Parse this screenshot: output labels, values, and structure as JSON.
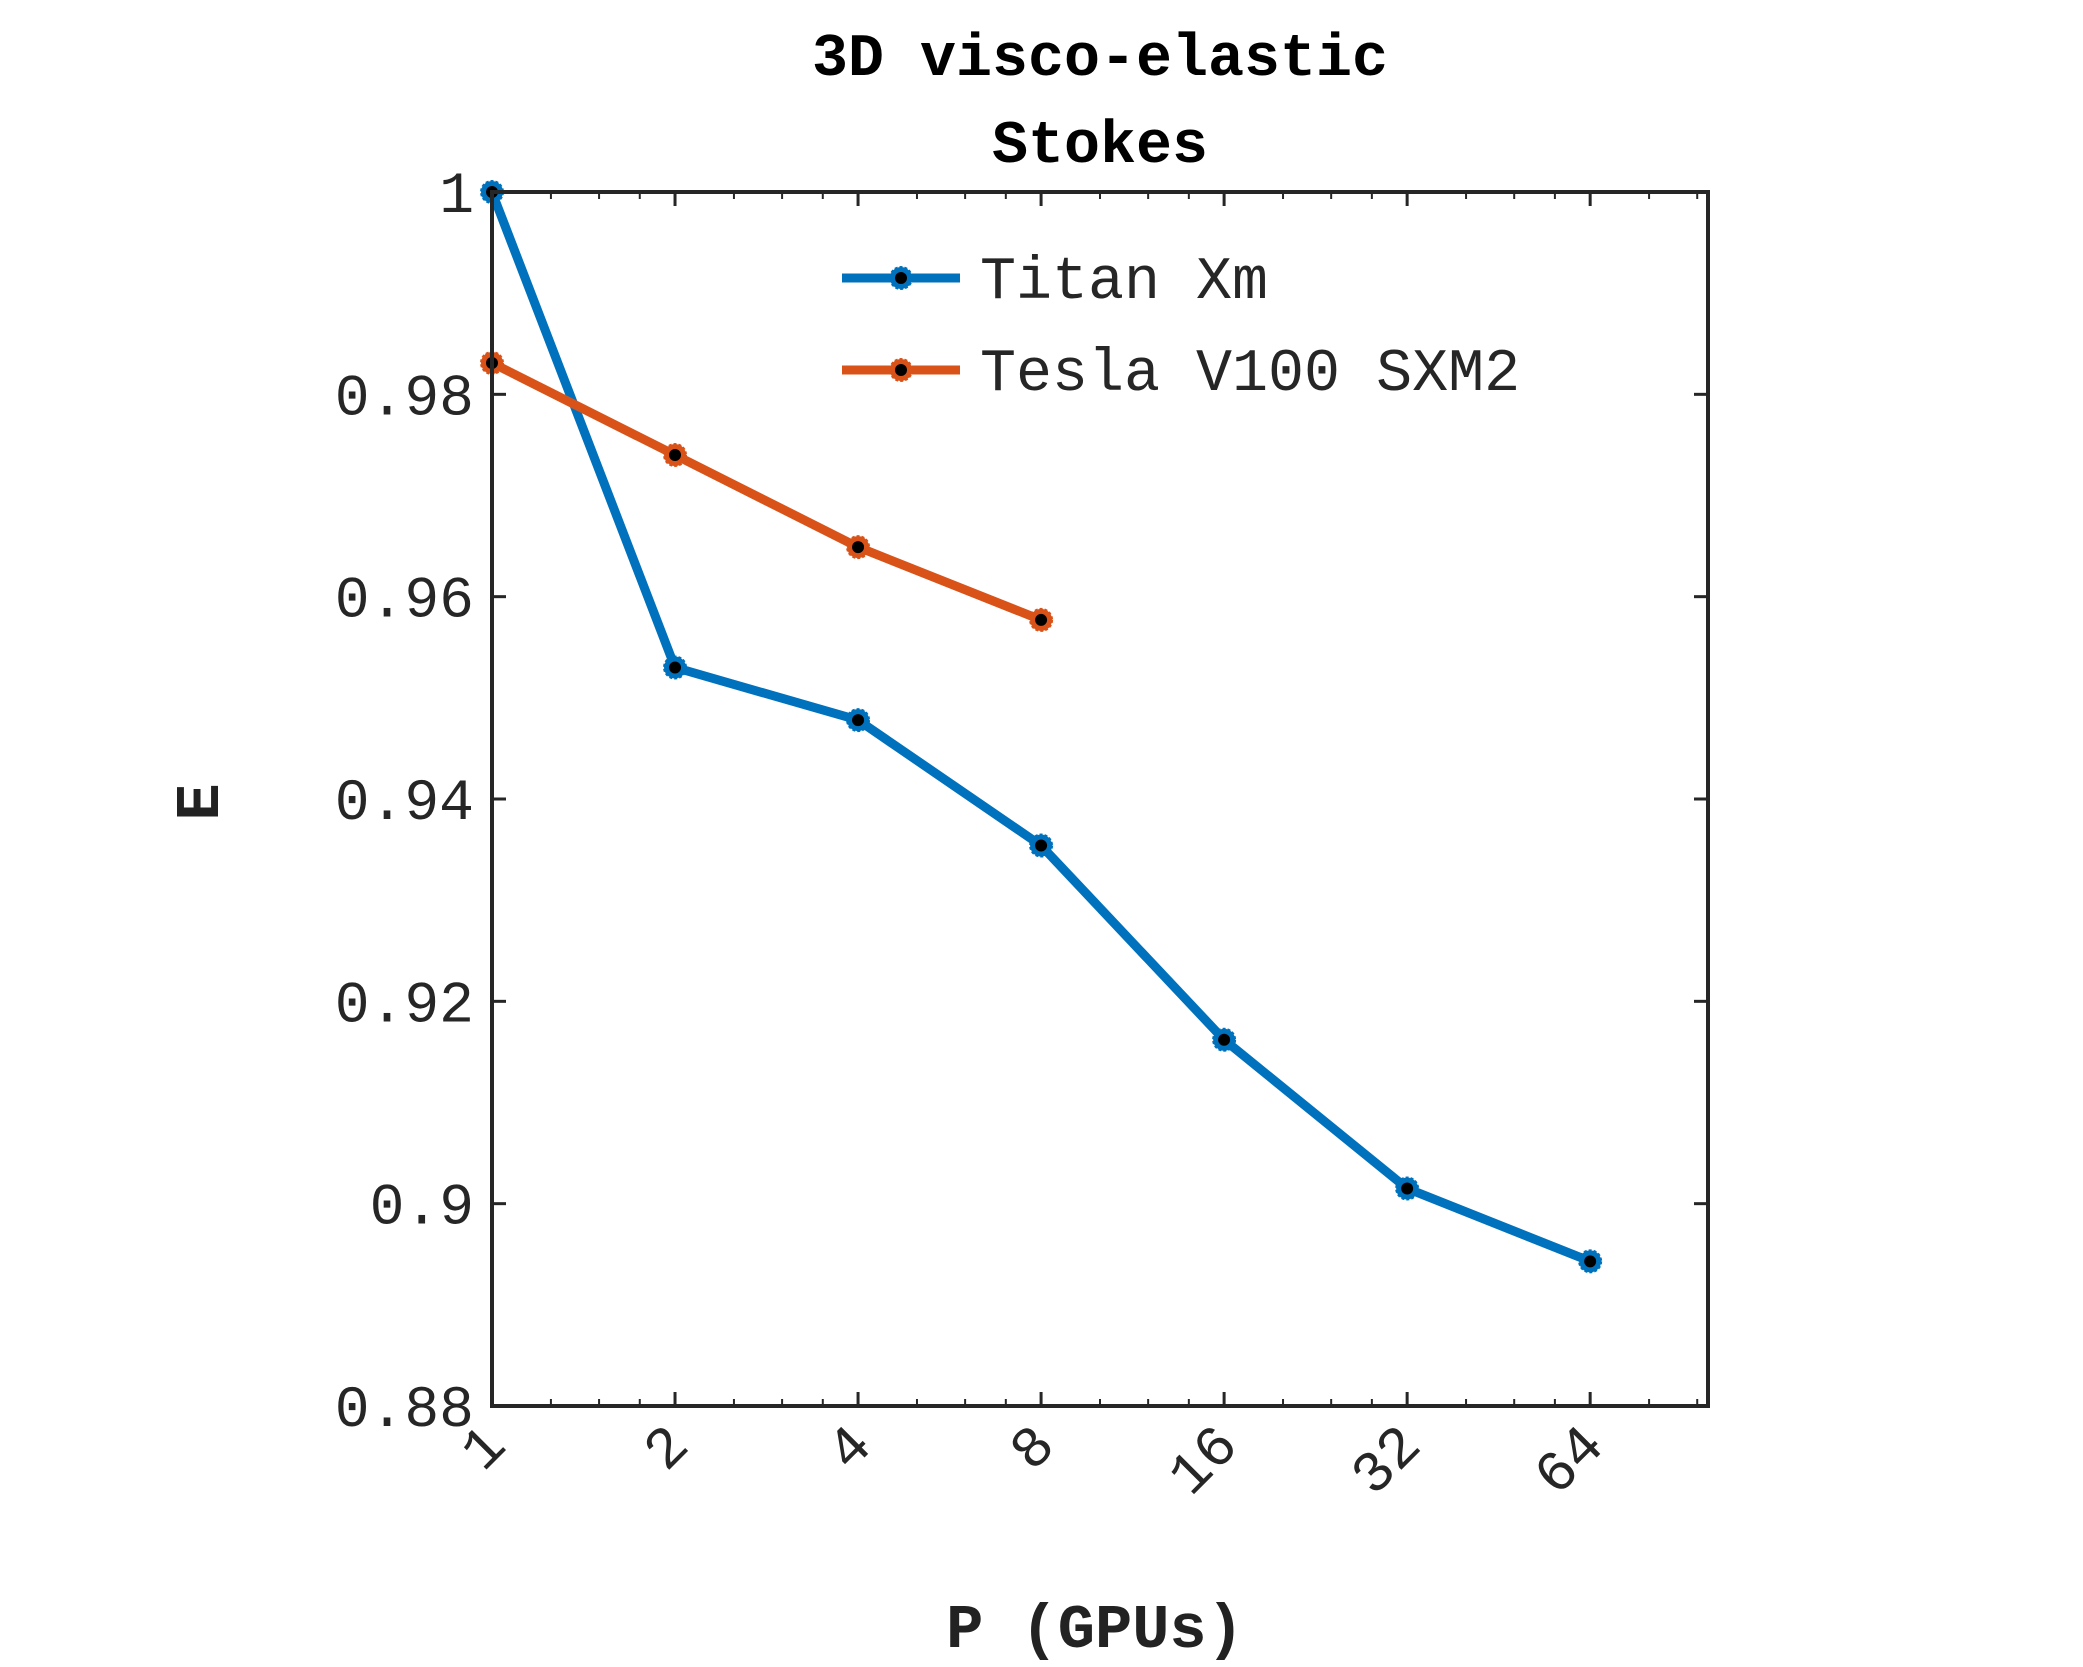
{
  "chart_data": {
    "type": "line",
    "title": [
      "3D visco-elastic",
      "Stokes"
    ],
    "xlabel": "P (GPUs)",
    "ylabel": "E",
    "x_scale": "log2",
    "xlim": [
      1,
      100
    ],
    "ylim": [
      0.88,
      1.0
    ],
    "x_ticks": [
      1,
      2,
      4,
      8,
      16,
      32,
      64
    ],
    "x_tick_labels": [
      "1",
      "2",
      "4",
      "8",
      "16",
      "32",
      "64"
    ],
    "y_ticks": [
      0.88,
      0.9,
      0.92,
      0.94,
      0.96,
      0.98,
      1.0
    ],
    "y_tick_labels": [
      "0.88",
      "0.9",
      "0.92",
      "0.94",
      "0.96",
      "0.98",
      "1"
    ],
    "grid": false,
    "legend_position": "top-right",
    "series": [
      {
        "name": "Titan Xm",
        "color": "#0072BD",
        "x": [
          1,
          2,
          4,
          8,
          16,
          32,
          64
        ],
        "y": [
          1.0,
          0.953,
          0.9478,
          0.9354,
          0.9162,
          0.9015,
          0.8943
        ]
      },
      {
        "name": "Tesla V100 SXM2",
        "color": "#D95319",
        "x": [
          1,
          2,
          4,
          8
        ],
        "y": [
          0.9831,
          0.974,
          0.9649,
          0.9577
        ]
      }
    ]
  }
}
